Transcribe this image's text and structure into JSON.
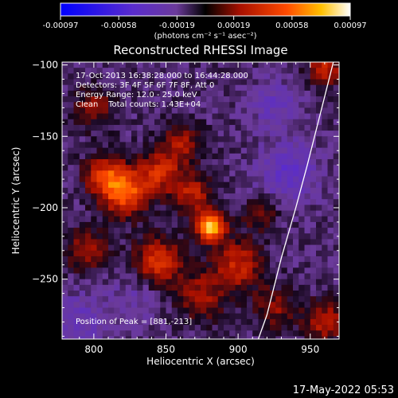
{
  "colorbar": {
    "tick_labels": [
      "-0.00097",
      "-0.00058",
      "-0.00019",
      "0.00019",
      "0.00058",
      "0.00097"
    ],
    "tick_values": [
      -0.00097,
      -0.00058,
      -0.00019,
      0.00019,
      0.00058,
      0.00097
    ],
    "range": [
      -0.00097,
      0.00097
    ],
    "unit_label": "(photons cm⁻² s⁻¹ asec⁻²)"
  },
  "chart_data": {
    "type": "heatmap",
    "title": "Reconstructed RHESSI Image",
    "xlabel": "Heliocentric X (arcsec)",
    "ylabel": "Heliocentric Y (arcsec)",
    "xlim": [
      778,
      970
    ],
    "ylim": [
      -292,
      -98
    ],
    "xticks": [
      800,
      850,
      900,
      950
    ],
    "yticks": [
      -100,
      -150,
      -200,
      -250
    ],
    "colormap": "rhessi-bipolar (blue-purple-black-red-orange-yellow-white)",
    "annotations": [
      "17-Oct-2013 16:38:28.000 to 16:44:28.000",
      "Detectors: 3F 4F 5F 6F 7F 8F, Att 0",
      "Energy Range: 12.0 - 25.0 keV",
      "Clean    Total counts: 1.43E+04"
    ],
    "peak_label": "Position of Peak = [881,-213]",
    "peak": {
      "x": 881,
      "y": -213,
      "value": 0.00097
    },
    "hotspots": [
      {
        "x": 881,
        "y": -213,
        "value": 0.00097,
        "sigma": 7
      },
      {
        "x": 822,
        "y": -190,
        "value": 0.00064,
        "sigma": 11
      },
      {
        "x": 808,
        "y": -178,
        "value": 0.00052,
        "sigma": 10
      },
      {
        "x": 845,
        "y": -238,
        "value": 0.0005,
        "sigma": 12
      },
      {
        "x": 845,
        "y": -175,
        "value": 0.00045,
        "sigma": 10
      },
      {
        "x": 900,
        "y": -240,
        "value": 0.00044,
        "sigma": 12
      },
      {
        "x": 868,
        "y": -190,
        "value": 0.0004,
        "sigma": 10
      },
      {
        "x": 795,
        "y": -230,
        "value": 0.00038,
        "sigma": 10
      },
      {
        "x": 860,
        "y": -155,
        "value": 0.00035,
        "sigma": 10
      },
      {
        "x": 875,
        "y": -262,
        "value": 0.00033,
        "sigma": 12
      },
      {
        "x": 960,
        "y": -103,
        "value": 0.00045,
        "sigma": 8
      },
      {
        "x": 960,
        "y": -280,
        "value": 0.0004,
        "sigma": 10
      },
      {
        "x": 925,
        "y": -270,
        "value": 0.0003,
        "sigma": 10
      },
      {
        "x": 800,
        "y": -130,
        "value": 0.0003,
        "sigma": 10
      },
      {
        "x": 915,
        "y": -205,
        "value": 0.00028,
        "sigma": 8
      },
      {
        "x": 935,
        "y": -175,
        "value": -0.0003,
        "sigma": 14
      },
      {
        "x": 790,
        "y": -280,
        "value": -0.00022,
        "sigma": 14
      },
      {
        "x": 925,
        "y": -128,
        "value": -0.0002,
        "sigma": 12
      },
      {
        "x": 830,
        "y": -262,
        "value": -0.00015,
        "sigma": 12
      }
    ],
    "limb_curve": [
      [
        966,
        -98
      ],
      [
        958,
        -130
      ],
      [
        948,
        -170
      ],
      [
        940,
        -200
      ],
      [
        930,
        -235
      ],
      [
        920,
        -275
      ],
      [
        914,
        -292
      ]
    ]
  },
  "footer": {
    "timestamp": "17-May-2022 05:53"
  }
}
